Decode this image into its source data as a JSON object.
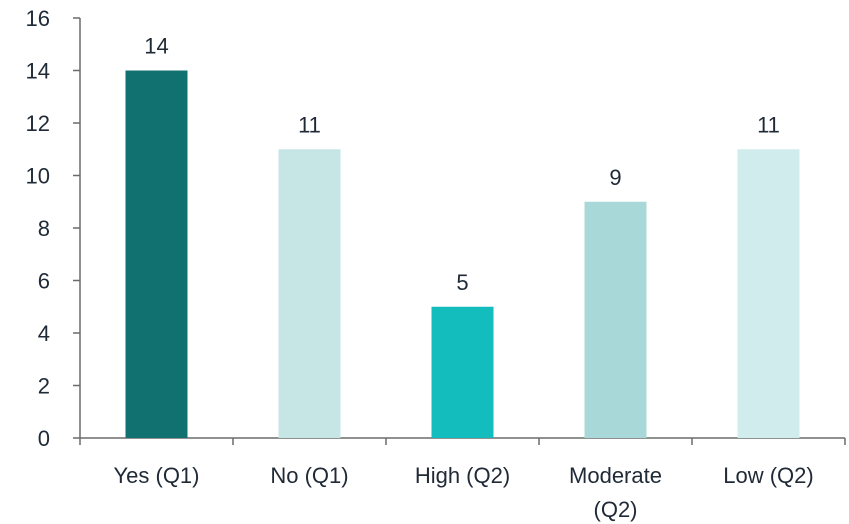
{
  "chart_data": {
    "type": "bar",
    "categories": [
      [
        "Yes (Q1)"
      ],
      [
        "No (Q1)"
      ],
      [
        "High (Q2)"
      ],
      [
        "Moderate",
        "(Q2)"
      ],
      [
        "Low (Q2)"
      ]
    ],
    "values": [
      14,
      11,
      5,
      9,
      11
    ],
    "bar_colors": [
      "#117070",
      "#c6e5e5",
      "#14bdbd",
      "#a8d9d8",
      "#d1ecec"
    ],
    "title": "",
    "xlabel": "",
    "ylabel": "",
    "ylim": [
      0,
      16
    ],
    "yticks": [
      0,
      2,
      4,
      6,
      8,
      10,
      12,
      14,
      16
    ],
    "grid": false,
    "data_labels": true
  }
}
